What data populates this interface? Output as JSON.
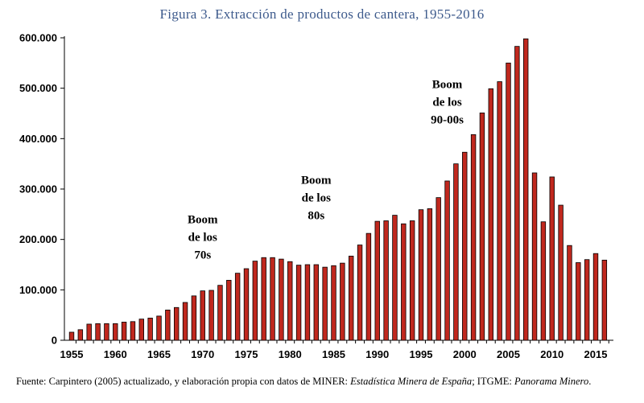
{
  "chart_data": {
    "type": "bar",
    "title": "Figura 3. Extracción de productos de cantera, 1955-2016",
    "xlabel": "",
    "ylabel": "",
    "ylim": [
      0,
      600000
    ],
    "yticks": [
      "0",
      "100.000",
      "200.000",
      "300.000",
      "400.000",
      "500.000",
      "600.000"
    ],
    "xticks": [
      "1955",
      "1960",
      "1965",
      "1970",
      "1975",
      "1980",
      "1985",
      "1990",
      "1995",
      "2000",
      "2005",
      "2010",
      "2015"
    ],
    "categories": [
      1955,
      1956,
      1957,
      1958,
      1959,
      1960,
      1961,
      1962,
      1963,
      1964,
      1965,
      1966,
      1967,
      1968,
      1969,
      1970,
      1971,
      1972,
      1973,
      1974,
      1975,
      1976,
      1977,
      1978,
      1979,
      1980,
      1981,
      1982,
      1983,
      1984,
      1985,
      1986,
      1987,
      1988,
      1989,
      1990,
      1991,
      1992,
      1993,
      1994,
      1995,
      1996,
      1997,
      1998,
      1999,
      2000,
      2001,
      2002,
      2003,
      2004,
      2005,
      2006,
      2007,
      2008,
      2009,
      2010,
      2011,
      2012,
      2013,
      2014,
      2015,
      2016
    ],
    "values": [
      16000,
      21000,
      32000,
      33000,
      33000,
      33000,
      36000,
      37000,
      42000,
      44000,
      48000,
      60000,
      65000,
      75000,
      88000,
      98000,
      99000,
      109000,
      119000,
      133000,
      142000,
      157000,
      164000,
      164000,
      161000,
      156000,
      149000,
      150000,
      150000,
      145000,
      148000,
      153000,
      167000,
      189000,
      212000,
      236000,
      237000,
      248000,
      231000,
      237000,
      259000,
      261000,
      283000,
      316000,
      350000,
      373000,
      408000,
      451000,
      499000,
      513000,
      550000,
      583000,
      598000,
      332000,
      235000,
      324000,
      268000,
      188000,
      154000,
      160000,
      172000,
      159000
    ],
    "bar_color": "#c0281e",
    "grid": false,
    "annotations": [
      {
        "lines": [
          "Boom",
          "de los",
          "70s"
        ],
        "year": 1970,
        "value": 232000
      },
      {
        "lines": [
          "Boom",
          "de los",
          "80s"
        ],
        "year": 1983,
        "value": 310000
      },
      {
        "lines": [
          "Boom",
          "de los",
          "90-00s"
        ],
        "year": 1998,
        "value": 500000
      }
    ]
  },
  "source": {
    "prefix": "Fuente: Carpintero (2005) actualizado, y elaboración propia con datos de MINER: ",
    "italic1": "Estadística Minera de España",
    "middle": "; ITGME: ",
    "italic2": "Panorama Minero",
    "suffix": "."
  }
}
